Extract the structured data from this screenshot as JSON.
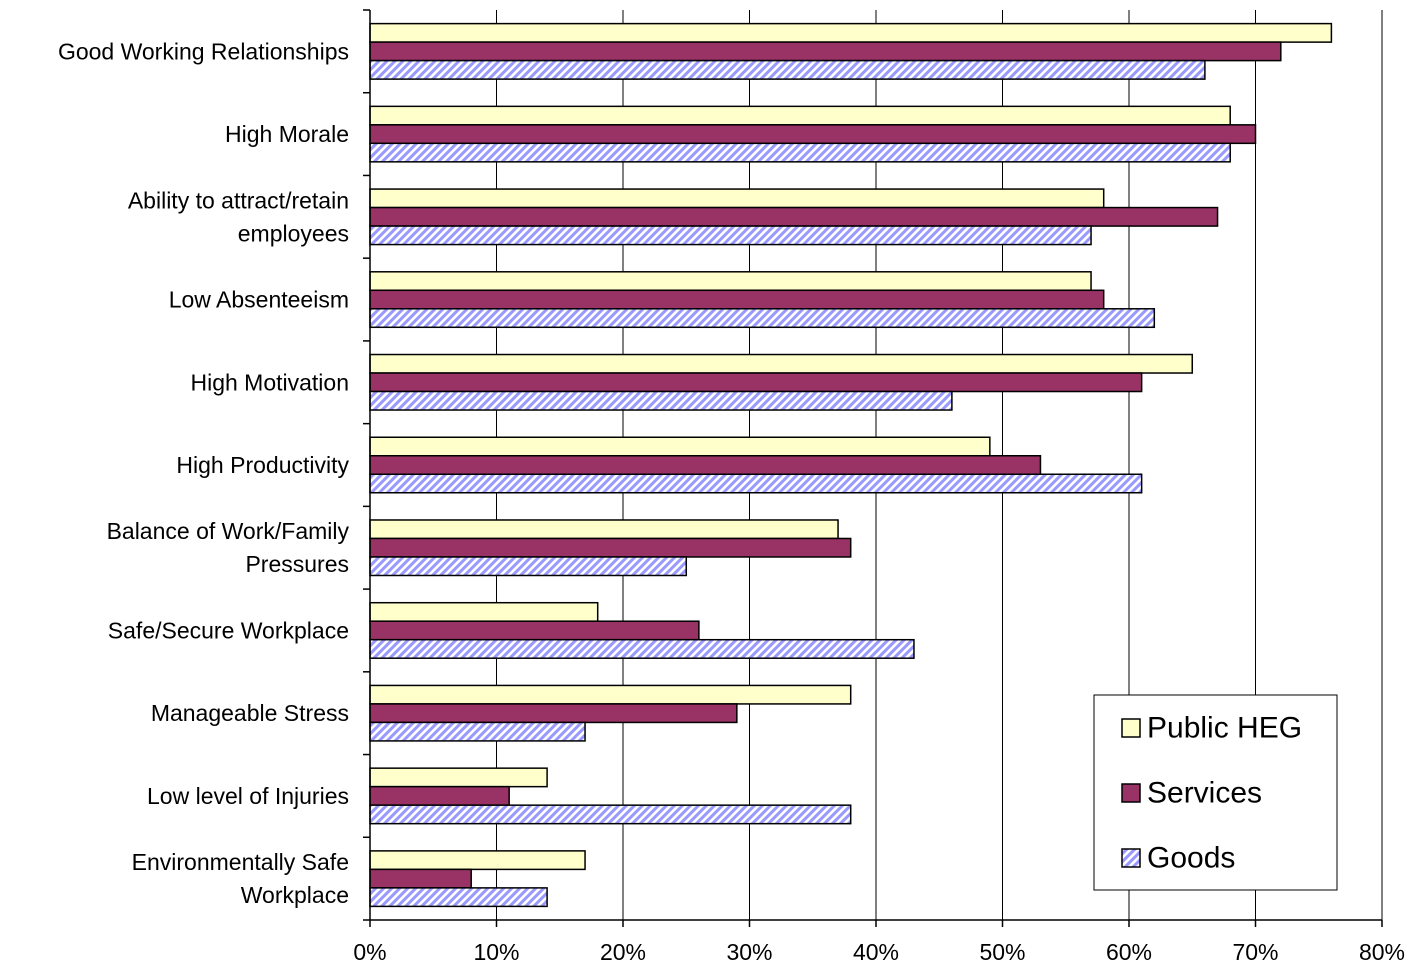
{
  "chart_data": {
    "type": "bar",
    "orientation": "horizontal",
    "categories": [
      [
        "Good Working Relationships"
      ],
      [
        "High Morale"
      ],
      [
        "Ability to attract/retain",
        "employees"
      ],
      [
        "Low Absenteeism"
      ],
      [
        "High Motivation"
      ],
      [
        "High Productivity"
      ],
      [
        "Balance of Work/Family",
        "Pressures"
      ],
      [
        "Safe/Secure Workplace"
      ],
      [
        "Manageable Stress"
      ],
      [
        "Low level of Injuries"
      ],
      [
        "Environmentally Safe",
        "Workplace"
      ]
    ],
    "series": [
      {
        "name": "Public HEG",
        "color": "#ffffcc",
        "pattern": "solid",
        "values": [
          76,
          68,
          58,
          57,
          65,
          49,
          37,
          18,
          38,
          14,
          17
        ]
      },
      {
        "name": "Services",
        "color": "#993366",
        "pattern": "solid",
        "values": [
          72,
          70,
          67,
          58,
          61,
          53,
          38,
          26,
          29,
          11,
          8
        ]
      },
      {
        "name": "Goods",
        "color": "#9999ff",
        "pattern": "diagonal-stripes",
        "values": [
          66,
          68,
          57,
          62,
          46,
          61,
          25,
          43,
          17,
          38,
          14
        ]
      }
    ],
    "xlim": [
      0,
      80
    ],
    "xticks": [
      0,
      10,
      20,
      30,
      40,
      50,
      60,
      70,
      80
    ],
    "tick_format": "percent",
    "grid": "vertical",
    "legend": "bottom-right",
    "title": "",
    "xlabel": "",
    "ylabel": ""
  }
}
